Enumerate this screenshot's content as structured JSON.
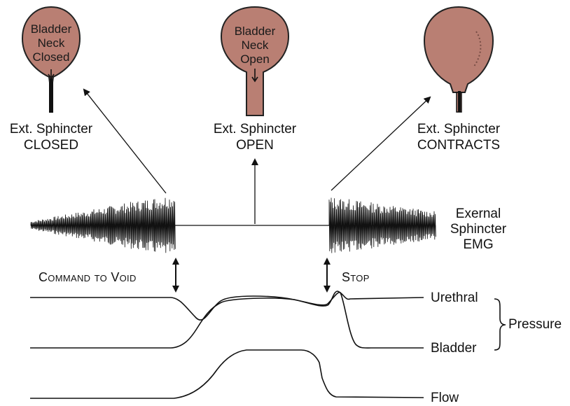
{
  "bladders": [
    {
      "inner_text": [
        "Bladder",
        "Neck",
        "Closed"
      ],
      "sphincter_label": [
        "Ext. Sphincter",
        "CLOSED"
      ]
    },
    {
      "inner_text": [
        "Bladder",
        "Neck",
        "Open"
      ],
      "sphincter_label": [
        "Ext. Sphincter",
        "OPEN"
      ]
    },
    {
      "inner_text": [],
      "sphincter_label": [
        "Ext. Sphincter",
        "CONTRACTS"
      ]
    }
  ],
  "emg_label": [
    "Exernal",
    "Sphincter",
    "EMG"
  ],
  "events": {
    "command": "Command to Void",
    "stop": "Stop"
  },
  "traces": {
    "urethral": "Urethral",
    "bladder": "Bladder",
    "flow": "Flow",
    "pressure_group": "Pressure"
  },
  "colors": {
    "bladder_fill": "#B97F73",
    "ink": "#111111"
  }
}
